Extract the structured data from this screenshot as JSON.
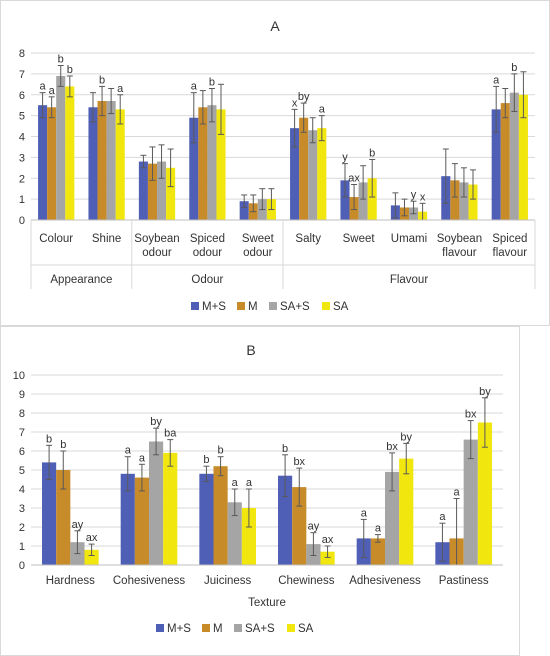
{
  "colors": {
    "M+S": "#4f5fb5",
    "M": "#c88b2a",
    "SA+S": "#a5a5a5",
    "SA": "#f2e60f"
  },
  "chart_data": [
    {
      "type": "bar",
      "title": "A",
      "ylim": [
        0,
        8
      ],
      "yticks": [
        "0",
        "1",
        "2",
        "3",
        "4",
        "5",
        "6",
        "7",
        "8"
      ],
      "grid": true,
      "legend": "bottom",
      "series_names": [
        "M+S",
        "M",
        "SA+S",
        "SA"
      ],
      "categories": [
        "Colour",
        "Shine",
        "Soybean odour",
        "Spiced odour",
        "Sweet odour",
        "Salty",
        "Sweet",
        "Umami",
        "Soybean flavour",
        "Spiced flavour"
      ],
      "category_lines": [
        [
          "Colour"
        ],
        [
          "Shine"
        ],
        [
          "Soybean",
          "odour"
        ],
        [
          "Spiced",
          "odour"
        ],
        [
          "Sweet",
          "odour"
        ],
        [
          "Salty"
        ],
        [
          "Sweet"
        ],
        [
          "Umami"
        ],
        [
          "Soybean",
          "flavour"
        ],
        [
          "Spiced",
          "flavour"
        ]
      ],
      "groups": [
        {
          "label": "Appearance",
          "from": 0,
          "to": 1
        },
        {
          "label": "Odour",
          "from": 2,
          "to": 4
        },
        {
          "label": "Flavour",
          "from": 5,
          "to": 9
        }
      ],
      "series": [
        {
          "name": "M+S",
          "values": [
            5.5,
            5.4,
            2.8,
            4.9,
            0.9,
            4.4,
            1.9,
            0.7,
            2.1,
            5.3
          ],
          "errors": [
            0.6,
            0.7,
            0.3,
            1.2,
            0.3,
            0.9,
            0.8,
            0.6,
            1.3,
            1.1
          ],
          "letters": [
            "a",
            "",
            "",
            "a",
            "",
            "x",
            "y",
            "",
            "",
            "a"
          ]
        },
        {
          "name": "M",
          "values": [
            5.4,
            5.7,
            2.7,
            5.4,
            0.8,
            4.9,
            1.1,
            0.6,
            1.9,
            5.6
          ],
          "errors": [
            0.5,
            0.7,
            0.8,
            0.8,
            0.4,
            0.7,
            0.6,
            0.4,
            0.8,
            0.7
          ],
          "letters": [
            "a",
            "b",
            "",
            "",
            "",
            "by",
            "ax",
            "",
            "",
            ""
          ]
        },
        {
          "name": "SA+S",
          "values": [
            6.9,
            5.7,
            2.8,
            5.5,
            1.0,
            4.3,
            1.8,
            0.6,
            1.8,
            6.1
          ],
          "errors": [
            0.5,
            0.6,
            0.8,
            0.8,
            0.5,
            0.6,
            0.8,
            0.3,
            0.7,
            0.9
          ],
          "letters": [
            "b",
            "",
            "",
            "b",
            "",
            "",
            "",
            "y",
            "",
            "b"
          ]
        },
        {
          "name": "SA",
          "values": [
            6.4,
            5.3,
            2.5,
            5.3,
            1.0,
            4.4,
            2.0,
            0.4,
            1.7,
            6.0
          ],
          "errors": [
            0.5,
            0.7,
            0.9,
            1.2,
            0.5,
            0.6,
            0.9,
            0.4,
            0.7,
            1.1
          ],
          "letters": [
            "b",
            "a",
            "",
            "",
            "",
            "a",
            "b",
            "x",
            "",
            ""
          ]
        }
      ]
    },
    {
      "type": "bar",
      "title": "B",
      "ylim": [
        0,
        10
      ],
      "yticks": [
        "0",
        "1",
        "2",
        "3",
        "4",
        "5",
        "6",
        "7",
        "8",
        "9",
        "10"
      ],
      "grid": true,
      "legend": "bottom",
      "xlabel": "Texture",
      "series_names": [
        "M+S",
        "M",
        "SA+S",
        "SA"
      ],
      "categories": [
        "Hardness",
        "Cohesiveness",
        "Juiciness",
        "Chewiness",
        "Adhesiveness",
        "Pastiness"
      ],
      "series": [
        {
          "name": "M+S",
          "values": [
            5.4,
            4.8,
            4.8,
            4.7,
            1.4,
            1.2
          ],
          "errors": [
            0.9,
            0.9,
            0.4,
            1.1,
            1.0,
            1.0
          ],
          "letters": [
            "b",
            "a",
            "b",
            "b",
            "a",
            "a"
          ]
        },
        {
          "name": "M",
          "values": [
            5.0,
            4.6,
            5.2,
            4.1,
            1.4,
            1.4
          ],
          "errors": [
            1.0,
            0.7,
            0.5,
            1.0,
            0.2,
            2.1
          ],
          "letters": [
            "b",
            "a",
            "b",
            "bx",
            "a",
            "a"
          ]
        },
        {
          "name": "SA+S",
          "values": [
            1.2,
            6.5,
            3.3,
            1.1,
            4.9,
            6.6
          ],
          "errors": [
            0.6,
            0.7,
            0.7,
            0.6,
            1.0,
            1.0
          ],
          "letters": [
            "ay",
            "by",
            "a",
            "ay",
            "bx",
            "bx"
          ]
        },
        {
          "name": "SA",
          "values": [
            0.8,
            5.9,
            3.0,
            0.7,
            5.6,
            7.5
          ],
          "errors": [
            0.3,
            0.7,
            1.0,
            0.3,
            0.8,
            1.3
          ],
          "letters": [
            "ax",
            "ba",
            "a",
            "ax",
            "by",
            "by"
          ]
        }
      ]
    }
  ]
}
